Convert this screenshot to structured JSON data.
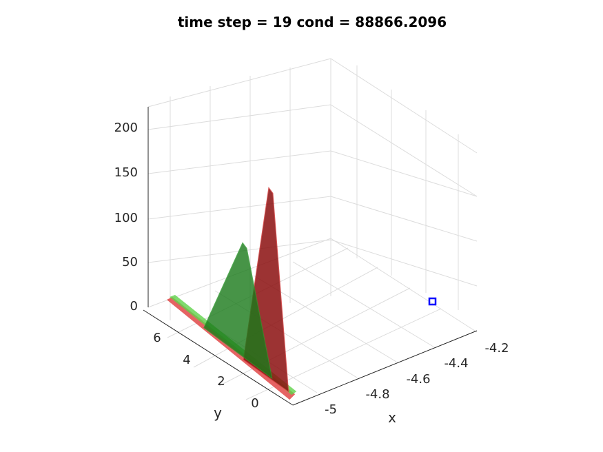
{
  "chart_data": {
    "type": "surface3d",
    "title": "time step = 19 cond = 88866.2096",
    "xlabel": "x",
    "ylabel": "y",
    "zlabel": "",
    "xlim": [
      -5.1,
      -4.15
    ],
    "ylim": [
      -0.8,
      7.0
    ],
    "zlim": [
      0,
      230
    ],
    "xticks": [
      "-5",
      "-4.8",
      "-4.6",
      "-4.4",
      "-4.2"
    ],
    "yticks": [
      "0",
      "2",
      "4",
      "6"
    ],
    "zticks": [
      "0",
      "50",
      "100",
      "150",
      "200"
    ],
    "grid": true,
    "series": [
      {
        "color": "#8b1010",
        "peak_z": 220,
        "peak_y": 1.0
      },
      {
        "color": "#1a7a1a",
        "peak_z": 140,
        "peak_y": 2.0
      }
    ],
    "marker": {
      "x": -4.2,
      "y": 6.6,
      "z": 0,
      "color": "#0000ff",
      "shape": "square"
    }
  }
}
